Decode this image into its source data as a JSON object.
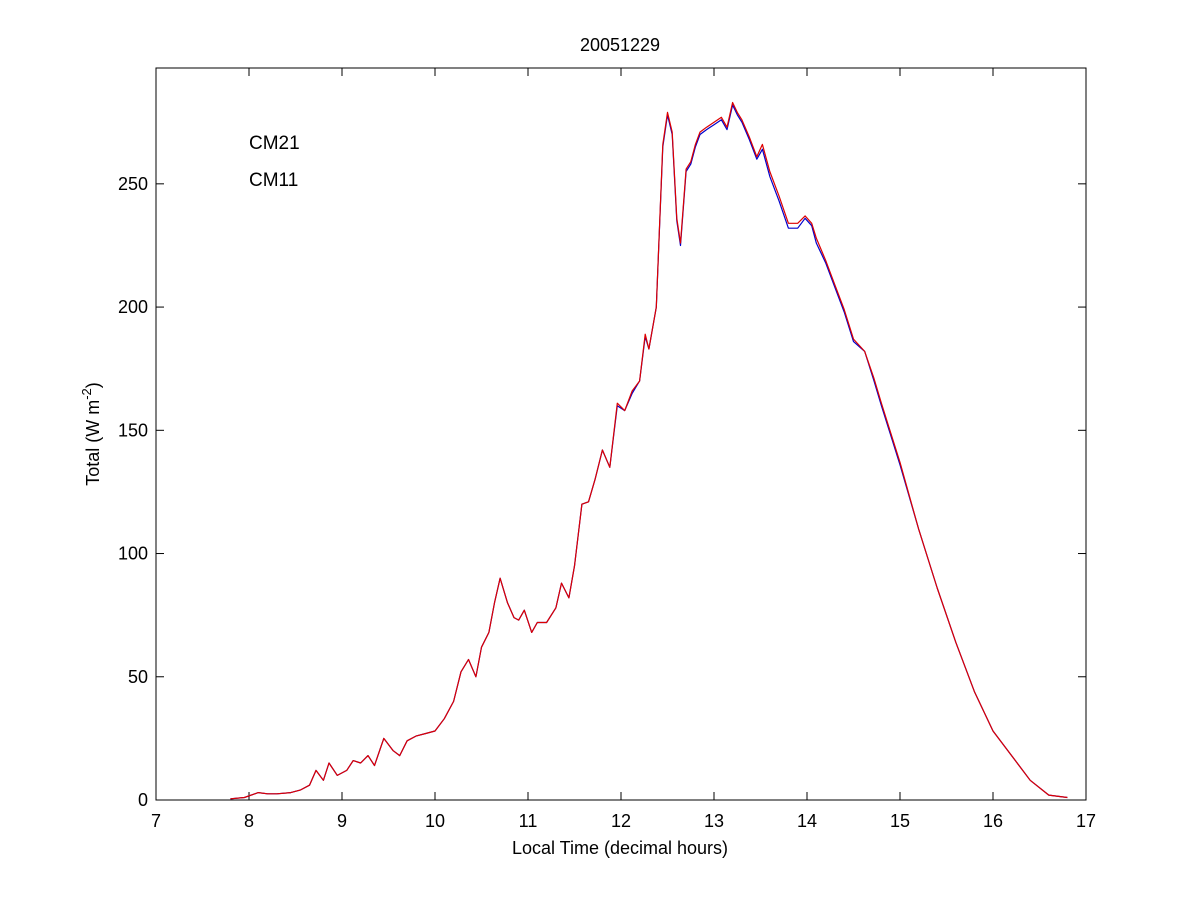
{
  "chart_data": {
    "type": "line",
    "title": "20051229",
    "xlabel": "Local Time (decimal hours)",
    "ylabel": "Total (W m",
    "ylabel_sup": "-2",
    "ylabel_tail": ")",
    "xlim": [
      7,
      17
    ],
    "ylim": [
      0,
      297
    ],
    "xticks": [
      7,
      8,
      9,
      10,
      11,
      12,
      13,
      14,
      15,
      16,
      17
    ],
    "yticks": [
      0,
      50,
      100,
      150,
      200,
      250
    ],
    "grid": false,
    "legend_position": "top-left",
    "series": [
      {
        "name": "CM21",
        "color": "#0000cc",
        "x": [
          7.8,
          7.95,
          8.1,
          8.2,
          8.3,
          8.45,
          8.55,
          8.65,
          8.72,
          8.8,
          8.86,
          8.95,
          9.05,
          9.12,
          9.2,
          9.28,
          9.35,
          9.45,
          9.55,
          9.62,
          9.7,
          9.8,
          9.9,
          10.0,
          10.1,
          10.2,
          10.28,
          10.36,
          10.44,
          10.5,
          10.58,
          10.64,
          10.7,
          10.78,
          10.85,
          10.9,
          10.96,
          11.04,
          11.1,
          11.2,
          11.3,
          11.36,
          11.44,
          11.5,
          11.58,
          11.65,
          11.72,
          11.8,
          11.88,
          11.96,
          12.04,
          12.12,
          12.2,
          12.26,
          12.3,
          12.38,
          12.45,
          12.5,
          12.55,
          12.6,
          12.64,
          12.7,
          12.75,
          12.8,
          12.85,
          12.92,
          13.0,
          13.08,
          13.14,
          13.2,
          13.25,
          13.3,
          13.38,
          13.46,
          13.52,
          13.6,
          13.7,
          13.8,
          13.9,
          13.98,
          14.05,
          14.1,
          14.2,
          14.3,
          14.4,
          14.5,
          14.62,
          14.72,
          14.8,
          14.9,
          15.0,
          15.2,
          15.4,
          15.6,
          15.8,
          16.0,
          16.2,
          16.4,
          16.6,
          16.8
        ],
        "y": [
          0.5,
          1,
          3,
          2.5,
          2.5,
          3,
          4,
          6,
          12,
          8,
          15,
          10,
          12,
          16,
          15,
          18,
          14,
          25,
          20,
          18,
          24,
          26,
          27,
          28,
          33,
          40,
          52,
          57,
          50,
          62,
          68,
          80,
          90,
          80,
          74,
          73,
          77,
          68,
          72,
          72,
          78,
          88,
          82,
          95,
          120,
          121,
          130,
          142,
          135,
          160,
          158,
          165,
          170,
          188,
          183,
          200,
          265,
          278,
          270,
          235,
          225,
          255,
          258,
          265,
          270,
          272,
          274,
          276,
          272,
          282,
          278,
          275,
          268,
          260,
          264,
          253,
          243,
          232,
          232,
          236,
          233,
          226,
          218,
          208,
          198,
          186,
          182,
          170,
          160,
          148,
          136,
          110,
          86,
          64,
          44,
          28,
          18,
          8,
          2,
          1
        ]
      },
      {
        "name": "CM11",
        "color": "#dd0000",
        "x": [
          7.8,
          7.95,
          8.1,
          8.2,
          8.3,
          8.45,
          8.55,
          8.65,
          8.72,
          8.8,
          8.86,
          8.95,
          9.05,
          9.12,
          9.2,
          9.28,
          9.35,
          9.45,
          9.55,
          9.62,
          9.7,
          9.8,
          9.9,
          10.0,
          10.1,
          10.2,
          10.28,
          10.36,
          10.44,
          10.5,
          10.58,
          10.64,
          10.7,
          10.78,
          10.85,
          10.9,
          10.96,
          11.04,
          11.1,
          11.2,
          11.3,
          11.36,
          11.44,
          11.5,
          11.58,
          11.65,
          11.72,
          11.8,
          11.88,
          11.96,
          12.04,
          12.12,
          12.2,
          12.26,
          12.3,
          12.38,
          12.45,
          12.5,
          12.55,
          12.6,
          12.64,
          12.7,
          12.75,
          12.8,
          12.85,
          12.92,
          13.0,
          13.08,
          13.14,
          13.2,
          13.25,
          13.3,
          13.38,
          13.46,
          13.52,
          13.6,
          13.7,
          13.8,
          13.9,
          13.98,
          14.05,
          14.1,
          14.2,
          14.3,
          14.4,
          14.5,
          14.62,
          14.72,
          14.8,
          14.9,
          15.0,
          15.2,
          15.4,
          15.6,
          15.8,
          16.0,
          16.2,
          16.4,
          16.6,
          16.8
        ],
        "y": [
          0.5,
          1,
          3,
          2.5,
          2.5,
          3,
          4,
          6,
          12,
          8,
          15,
          10,
          12,
          16,
          15,
          18,
          14,
          25,
          20,
          18,
          24,
          26,
          27,
          28,
          33,
          40,
          52,
          57,
          50,
          62,
          68,
          80,
          90,
          80,
          74,
          73,
          77,
          68,
          72,
          72,
          78,
          88,
          82,
          95,
          120,
          121,
          130,
          142,
          135,
          161,
          158,
          166,
          170,
          189,
          183,
          200,
          266,
          279,
          271,
          236,
          226,
          256,
          259,
          266,
          271,
          273,
          275,
          277,
          273,
          283,
          279,
          276,
          269,
          261,
          266,
          255,
          245,
          234,
          234,
          237,
          234,
          228,
          219,
          209,
          199,
          187,
          182,
          171,
          161,
          149,
          137,
          110,
          86,
          64,
          44,
          28,
          18,
          8,
          2,
          1
        ]
      }
    ]
  }
}
